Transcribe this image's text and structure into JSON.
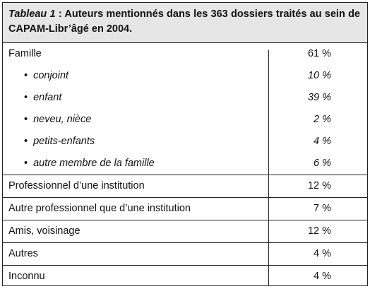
{
  "title": {
    "label": "Tableau 1",
    "text": " : Auteurs mentionnés dans les 363 dossiers traités au sein de CAPAM-Libr’âgé en 2004."
  },
  "table": {
    "groups": [
      {
        "label": "Famille",
        "value": "61 %",
        "items": [
          {
            "label": "conjoint",
            "value": "10 %"
          },
          {
            "label": "enfant",
            "value": "39 %"
          },
          {
            "label": "neveu, nièce",
            "value": "2 %"
          },
          {
            "label": "petits-enfants",
            "value": "4 %"
          },
          {
            "label": "autre membre de la famille",
            "value": "6 %"
          }
        ]
      },
      {
        "label": "Professionnel d’une institution",
        "value": "12 %",
        "items": []
      },
      {
        "label": "Autre professionnel que d’une institution",
        "value": "7 %",
        "items": []
      },
      {
        "label": "Amis, voisinage",
        "value": "12 %",
        "items": []
      },
      {
        "label": "Autres",
        "value": "4 %",
        "items": []
      },
      {
        "label": "Inconnu",
        "value": "4 %",
        "items": []
      }
    ]
  }
}
